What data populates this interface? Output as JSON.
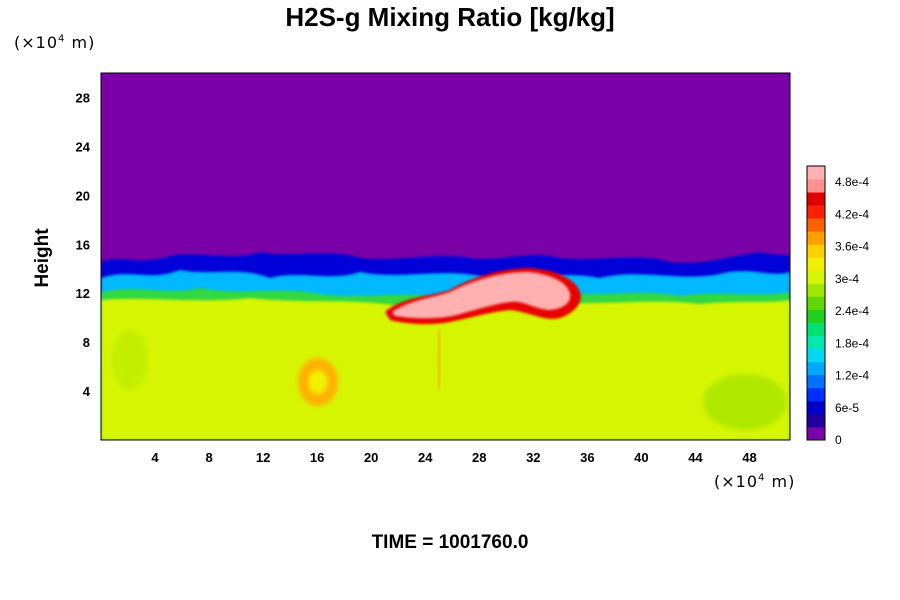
{
  "title": "H2S-g Mixing Ratio [kg/kg]",
  "y_unit": {
    "pre": "(×10",
    "exp": "4",
    "post": " m)"
  },
  "x_unit": {
    "pre": "(×10",
    "exp": "4",
    "post": " m)"
  },
  "time_label": "TIME = 1001760.0",
  "colors": {
    "upper_air": "#7a00a8",
    "lower_air": "#d6f500",
    "frame": "#000000"
  },
  "chart_data": {
    "type": "heatmap",
    "title": "H2S-g Mixing Ratio [kg/kg]",
    "xlabel": "",
    "ylabel": "Height",
    "x_unit": "×10^4 m",
    "y_unit": "×10^4 m",
    "xlim": [
      0,
      51
    ],
    "ylim": [
      0,
      30
    ],
    "x_ticks": [
      4,
      8,
      12,
      16,
      20,
      24,
      28,
      32,
      36,
      40,
      44,
      48
    ],
    "y_ticks": [
      4,
      8,
      12,
      16,
      20,
      24,
      28
    ],
    "field_description": {
      "upper_region_value": 0,
      "lower_region_value": 0.00036,
      "interface_height_approx": 12,
      "max_value_region": {
        "x_range": [
          21,
          34
        ],
        "y_range": [
          9.5,
          13
        ],
        "value": 0.0005
      }
    },
    "colorbar": {
      "min": 0,
      "max": 0.00051,
      "tick_values": [
        0,
        6e-05,
        0.00012,
        0.00018,
        0.00024,
        0.0003,
        0.00036,
        0.00042,
        0.00048
      ],
      "tick_labels": [
        "0",
        "6e-5",
        "1.2e-4",
        "1.8e-4",
        "2.4e-4",
        "3e-4",
        "3.6e-4",
        "4.2e-4",
        "4.8e-4"
      ],
      "colors": [
        "#7a00a8",
        "#2200a0",
        "#0000c8",
        "#0030ff",
        "#0070ff",
        "#00a8ff",
        "#00d8f0",
        "#00e8b0",
        "#00e070",
        "#20d020",
        "#60d800",
        "#a0e800",
        "#d6f500",
        "#f0f000",
        "#ffd000",
        "#ffa000",
        "#ff6000",
        "#ff2000",
        "#e00000",
        "#ff9090",
        "#ffb0b0"
      ]
    }
  }
}
